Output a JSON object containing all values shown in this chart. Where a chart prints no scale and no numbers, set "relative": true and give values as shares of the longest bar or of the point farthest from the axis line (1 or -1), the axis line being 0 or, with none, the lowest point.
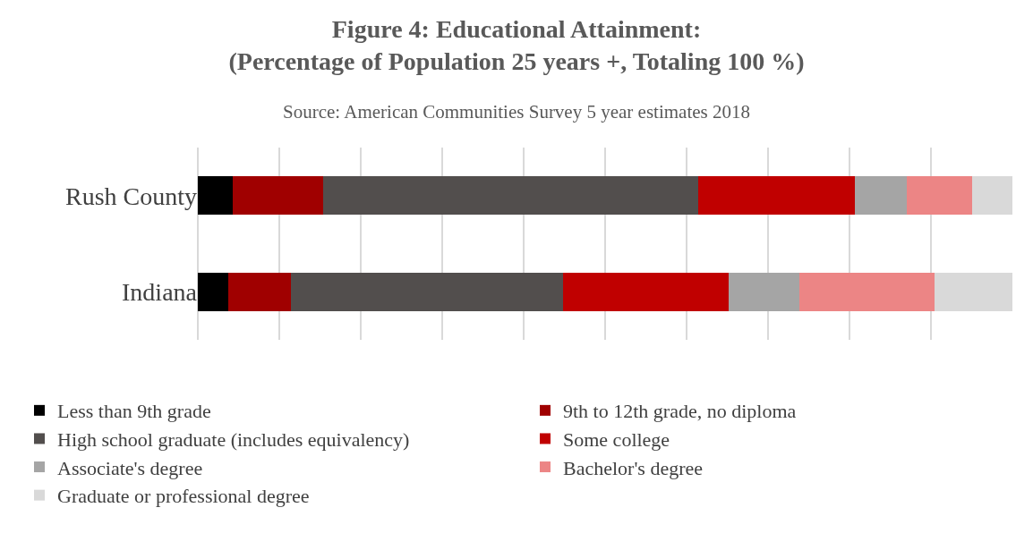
{
  "chart_data": {
    "type": "bar",
    "orientation": "horizontal",
    "stacked": true,
    "relative": true,
    "title": "Figure 4: Educational Attainment:\n(Percentage of Population 25 years +, Totaling 100 %)",
    "subtitle": "Source: American Communities Survey 5 year estimates 2018",
    "categories": [
      "Rush County",
      "Indiana"
    ],
    "series": [
      {
        "name": "Less than 9th grade",
        "color": "#000000",
        "values": [
          0.043,
          0.037
        ]
      },
      {
        "name": "9th to 12th grade, no diploma",
        "color": "#a00000",
        "values": [
          0.111,
          0.077
        ]
      },
      {
        "name": "High school graduate (includes equivalency)",
        "color": "#524e4d",
        "values": [
          0.46,
          0.334
        ]
      },
      {
        "name": "Some college",
        "color": "#c00000",
        "values": [
          0.193,
          0.204
        ]
      },
      {
        "name": "Associate's degree",
        "color": "#a5a5a5",
        "values": [
          0.063,
          0.087
        ]
      },
      {
        "name": "Bachelor's degree",
        "color": "#ec8585",
        "values": [
          0.081,
          0.165
        ]
      },
      {
        "name": "Graduate or professional degree",
        "color": "#d9d9d9",
        "values": [
          0.049,
          0.096
        ]
      }
    ],
    "grid": "x",
    "legend": "bottom"
  }
}
